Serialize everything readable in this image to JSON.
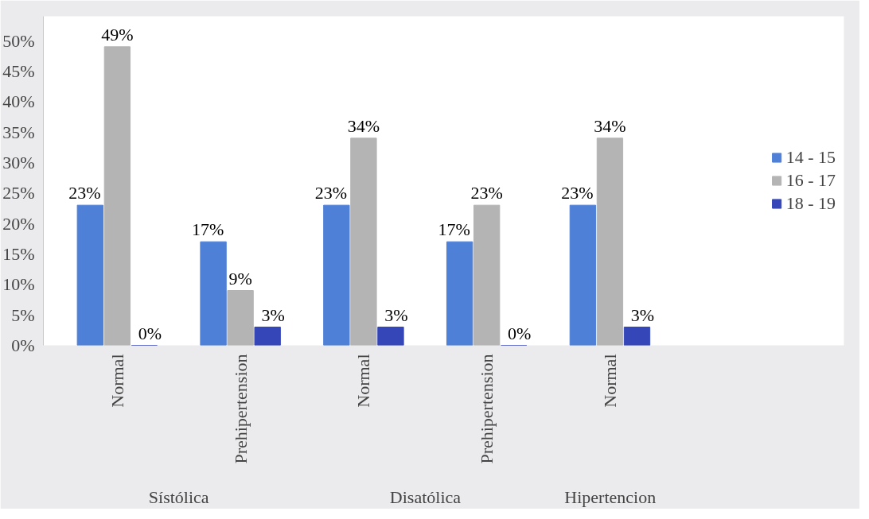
{
  "chart_data": {
    "type": "bar",
    "categories": [
      "Normal",
      "Prehipertension",
      "Normal",
      "Prehipertension",
      "Normal"
    ],
    "series": [
      {
        "name": "14 - 15",
        "color": "#4f80d8",
        "values": [
          23,
          17,
          23,
          17,
          23
        ],
        "value_labels": [
          "23%",
          "17%",
          "23%",
          "17%",
          "23%"
        ]
      },
      {
        "name": "16 - 17",
        "color": "#b4b4b4",
        "values": [
          49,
          9,
          34,
          23,
          34
        ],
        "value_labels": [
          "49%",
          "9%",
          "34%",
          "23%",
          "34%"
        ]
      },
      {
        "name": "18 - 19",
        "color": "#3446b8",
        "values": [
          0,
          3,
          3,
          0,
          3
        ],
        "value_labels": [
          "0%",
          "3%",
          "3%",
          "0%",
          "3%"
        ]
      }
    ],
    "ylim": [
      0,
      54
    ],
    "yticks": [
      {
        "value": 0,
        "label": "0%"
      },
      {
        "value": 5,
        "label": "5%"
      },
      {
        "value": 10,
        "label": "10%"
      },
      {
        "value": 15,
        "label": "15%"
      },
      {
        "value": 20,
        "label": "20%"
      },
      {
        "value": 25,
        "label": "25%"
      },
      {
        "value": 30,
        "label": "30%"
      },
      {
        "value": 35,
        "label": "35%"
      },
      {
        "value": 40,
        "label": "40%"
      },
      {
        "value": 45,
        "label": "45%"
      },
      {
        "value": 50,
        "label": "50%"
      }
    ],
    "annotations": [
      "Sístólica",
      "Disatólica",
      "Hipertencion"
    ],
    "legend": "right",
    "grid": false
  }
}
